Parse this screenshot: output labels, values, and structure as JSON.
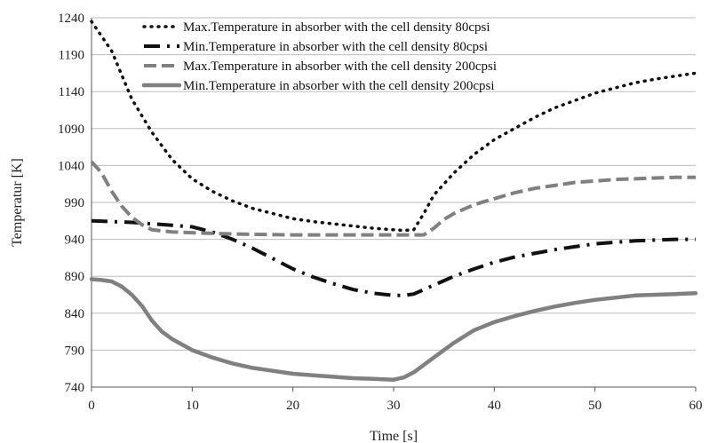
{
  "chart_data": {
    "type": "line",
    "title": "",
    "xlabel": "Time [s]",
    "ylabel": "Temperatur [K]",
    "xlim": [
      0,
      60
    ],
    "ylim": [
      740,
      1240
    ],
    "xticks": [
      0,
      10,
      20,
      30,
      40,
      50,
      60
    ],
    "yticks": [
      740,
      790,
      840,
      890,
      940,
      990,
      1040,
      1090,
      1140,
      1190,
      1240
    ],
    "grid": "horizontal",
    "legend_position": "top-right",
    "series": [
      {
        "name": "Max.Temperature in absorber with the cell density 80cpsi",
        "color": "#111111",
        "style": "dotted",
        "x": [
          0,
          2,
          4,
          6,
          8,
          10,
          12,
          14,
          16,
          18,
          20,
          22,
          24,
          26,
          28,
          30,
          31,
          32,
          33,
          34,
          35,
          36,
          38,
          40,
          42,
          44,
          46,
          48,
          50,
          52,
          54,
          56,
          58,
          60
        ],
        "y": [
          1235,
          1195,
          1130,
          1085,
          1048,
          1022,
          1005,
          992,
          982,
          975,
          968,
          964,
          961,
          958,
          955,
          953,
          952,
          953,
          975,
          1000,
          1015,
          1030,
          1055,
          1075,
          1090,
          1105,
          1118,
          1128,
          1138,
          1145,
          1152,
          1157,
          1161,
          1165
        ]
      },
      {
        "name": "Min.Temperature in absorber with the cell density 80cpsi",
        "color": "#111111",
        "style": "dash-dot",
        "x": [
          0,
          2,
          4,
          6,
          8,
          10,
          12,
          14,
          16,
          18,
          20,
          22,
          24,
          26,
          28,
          30,
          31,
          32,
          34,
          36,
          38,
          40,
          42,
          44,
          46,
          48,
          50,
          52,
          54,
          56,
          58,
          60
        ],
        "y": [
          965,
          964,
          963,
          961,
          959,
          957,
          950,
          940,
          928,
          914,
          900,
          889,
          880,
          872,
          867,
          864,
          864,
          866,
          878,
          890,
          900,
          909,
          916,
          921,
          926,
          930,
          934,
          936,
          938,
          939,
          940,
          940
        ]
      },
      {
        "name": "Max.Temperature in absorber with the cell density 200cpsi",
        "color": "#808080",
        "style": "dashed",
        "x": [
          0,
          1,
          2,
          3,
          4,
          5,
          6,
          8,
          10,
          12,
          15,
          20,
          25,
          30,
          32,
          33,
          34,
          35,
          36,
          38,
          40,
          42,
          44,
          46,
          48,
          50,
          52,
          54,
          56,
          58,
          60
        ],
        "y": [
          1045,
          1030,
          1005,
          985,
          970,
          960,
          953,
          950,
          949,
          948,
          947,
          946,
          946,
          946,
          946,
          946,
          955,
          967,
          975,
          987,
          995,
          1003,
          1009,
          1013,
          1017,
          1019,
          1021,
          1022,
          1023,
          1024,
          1024
        ]
      },
      {
        "name": "Min.Temperature in absorber with the cell density 200cpsi",
        "color": "#808080",
        "style": "solid",
        "x": [
          0,
          1,
          2,
          3,
          4,
          5,
          6,
          7,
          8,
          10,
          12,
          14,
          16,
          18,
          20,
          22,
          24,
          26,
          28,
          30,
          31,
          32,
          34,
          36,
          38,
          40,
          42,
          44,
          46,
          48,
          50,
          52,
          54,
          56,
          58,
          60
        ],
        "y": [
          886,
          885,
          883,
          876,
          865,
          850,
          830,
          815,
          805,
          790,
          780,
          772,
          766,
          762,
          758,
          756,
          754,
          752,
          751,
          750,
          753,
          760,
          780,
          800,
          817,
          828,
          836,
          843,
          849,
          854,
          858,
          861,
          864,
          865,
          866,
          867
        ]
      }
    ]
  }
}
